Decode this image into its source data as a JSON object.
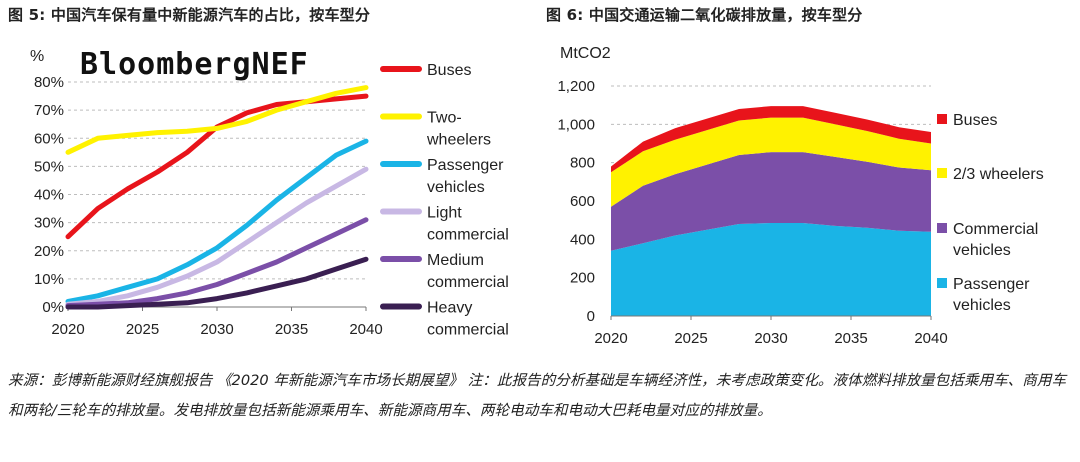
{
  "figures": {
    "left_title": "图 5: 中国汽车保有量中新能源汽车的占比，按车型分",
    "right_title": "图 6: 中国交通运输二氧化碳排放量，按车型分"
  },
  "chart_data": [
    {
      "type": "line",
      "title": "图 5: 中国汽车保有量中新能源汽车的占比，按车型分",
      "ylabel": "%",
      "brand_text": "BloombergNEF",
      "x": [
        2020,
        2022,
        2024,
        2026,
        2028,
        2030,
        2032,
        2034,
        2036,
        2038,
        2040
      ],
      "xticks": [
        "2020",
        "2025",
        "2030",
        "2035",
        "2040"
      ],
      "yticks": [
        "0%",
        "10%",
        "20%",
        "30%",
        "40%",
        "50%",
        "60%",
        "70%",
        "80%"
      ],
      "ylim": [
        0,
        80
      ],
      "xlim": [
        2020,
        2040
      ],
      "grid": "horizontal dashed",
      "legend_position": "right",
      "series": [
        {
          "name": "Buses",
          "label_lines": [
            "Buses"
          ],
          "color": "#e8141b",
          "values": [
            25,
            35,
            42,
            48,
            55,
            64,
            69,
            72,
            73,
            74,
            75
          ]
        },
        {
          "name": "Two-wheelers",
          "label_lines": [
            "Two-",
            "wheelers"
          ],
          "color": "#fff200",
          "values": [
            55,
            60,
            61,
            62,
            62.5,
            63.5,
            66,
            70,
            73,
            76,
            78
          ]
        },
        {
          "name": "Passenger vehicles",
          "label_lines": [
            "Passenger",
            "vehicles"
          ],
          "color": "#1ab4e6",
          "values": [
            2,
            4,
            7,
            10,
            15,
            21,
            29,
            38,
            46,
            54,
            59
          ]
        },
        {
          "name": "Light commercial",
          "label_lines": [
            "Light",
            "commercial"
          ],
          "color": "#c8b8e4",
          "values": [
            1,
            2,
            4,
            7,
            11,
            16,
            23,
            30,
            37,
            43,
            49
          ]
        },
        {
          "name": "Medium commercial",
          "label_lines": [
            "Medium",
            "commercial"
          ],
          "color": "#7b4fa8",
          "values": [
            0.5,
            1,
            1.5,
            3,
            5,
            8,
            12,
            16,
            21,
            26,
            31
          ]
        },
        {
          "name": "Heavy commercial",
          "label_lines": [
            "Heavy",
            "commercial"
          ],
          "color": "#3a1f52",
          "values": [
            0,
            0,
            0.5,
            1,
            1.5,
            3,
            5,
            7.5,
            10,
            13.5,
            17
          ]
        }
      ]
    },
    {
      "type": "area",
      "stacked": true,
      "title": "图 6: 中国交通运输二氧化碳排放量，按车型分",
      "ylabel": "MtCO2",
      "x": [
        2020,
        2022,
        2024,
        2026,
        2028,
        2030,
        2032,
        2034,
        2036,
        2038,
        2040
      ],
      "xticks": [
        "2020",
        "2025",
        "2030",
        "2035",
        "2040"
      ],
      "yticks": [
        "0",
        "200",
        "400",
        "600",
        "800",
        "1,000",
        "1,200"
      ],
      "ylim": [
        0,
        1200
      ],
      "xlim": [
        2020,
        2040
      ],
      "grid": "horizontal dashed",
      "legend_position": "right",
      "series": [
        {
          "name": "Passenger vehicles",
          "label_lines": [
            "Passenger",
            "vehicles"
          ],
          "color": "#1ab4e6",
          "values": [
            340,
            380,
            420,
            450,
            480,
            485,
            485,
            470,
            460,
            445,
            440
          ]
        },
        {
          "name": "Commercial vehicles",
          "label_lines": [
            "Commercial",
            "vehicles"
          ],
          "color": "#7b4fa8",
          "values": [
            230,
            300,
            320,
            340,
            360,
            370,
            370,
            360,
            345,
            330,
            320
          ]
        },
        {
          "name": "2/3 wheelers",
          "label_lines": [
            "2/3 wheelers"
          ],
          "color": "#fff200",
          "values": [
            180,
            180,
            180,
            180,
            180,
            180,
            180,
            170,
            160,
            150,
            140
          ]
        },
        {
          "name": "Buses",
          "label_lines": [
            "Buses"
          ],
          "color": "#e8141b",
          "values": [
            30,
            50,
            60,
            60,
            60,
            60,
            60,
            60,
            60,
            60,
            60
          ]
        }
      ]
    }
  ],
  "source_note": "来源：彭博新能源财经旗舰报告 《2020 年新能源汽车市场长期展望》 注：此报告的分析基础是车辆经济性，未考虑政策变化。液体燃料排放量包括乘用车、商用车和两轮/三轮车的排放量。发电排放量包括新能源乘用车、新能源商用车、两轮电动车和电动大巴耗电量对应的排放量。"
}
